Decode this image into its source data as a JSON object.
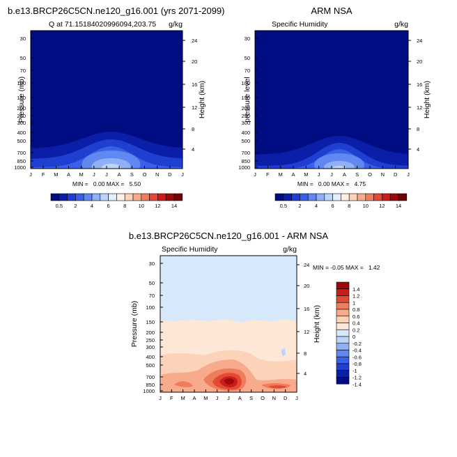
{
  "colors": {
    "seq_palette": [
      "#000c82",
      "#0b1ea8",
      "#1f3fd1",
      "#3a60e8",
      "#6088f0",
      "#8fb0f5",
      "#bcd3fa",
      "#e3eefd",
      "#fdf0e4",
      "#fcd3b8",
      "#f8ab8c",
      "#f07c5e",
      "#e44a33",
      "#c81e1a",
      "#9c0a0d",
      "#700306"
    ],
    "diff_palette": [
      "#000c82",
      "#0b1ea8",
      "#1f3fd1",
      "#3a60e8",
      "#6088f0",
      "#8fb0f5",
      "#bcd3fa",
      "#d7e8fb",
      "#fde8d8",
      "#fcd3b8",
      "#f8ab8c",
      "#f07c5e",
      "#e44a33",
      "#c81e1a",
      "#9c0a0d"
    ]
  },
  "chart_data": [
    {
      "type": "heatmap",
      "title": "b.e13.BRCP26C5CN.ne120_g16.001 (yrs 2071-2099)",
      "left_string": "Q at 71.15184020996094,203.75",
      "right_string": "g/kg",
      "ylabel": "Pressure (mb)",
      "y2label": "Height (km)",
      "x_ticks": [
        "J",
        "F",
        "M",
        "A",
        "M",
        "J",
        "J",
        "A",
        "S",
        "O",
        "N",
        "D",
        "J"
      ],
      "y_ticks": [
        "30",
        "50",
        "70",
        "100",
        "150",
        "200",
        "250",
        "300",
        "400",
        "500",
        "700",
        "850",
        "1000"
      ],
      "y2_ticks": [
        "24",
        "20",
        "16",
        "12",
        "8",
        "4"
      ],
      "min_max": "MIN =   0.00 MAX =   5.50",
      "colorbar_labels": [
        "0.5",
        "2",
        "4",
        "6",
        "8",
        "10",
        "12",
        "14"
      ],
      "approx_max": 5.5
    },
    {
      "type": "heatmap",
      "title": "ARM NSA",
      "left_string": "Specific Humidity",
      "right_string": "g/kg",
      "ylabel": "pressure level",
      "y2label": "Height (km)",
      "x_ticks": [
        "J",
        "F",
        "M",
        "A",
        "M",
        "J",
        "J",
        "A",
        "S",
        "O",
        "N",
        "D",
        "J"
      ],
      "y_ticks": [
        "30",
        "50",
        "70",
        "100",
        "150",
        "200",
        "250",
        "300",
        "400",
        "500",
        "700",
        "850",
        "1000"
      ],
      "y2_ticks": [
        "24",
        "20",
        "16",
        "12",
        "8",
        "4"
      ],
      "min_max": "MIN =   0.00 MAX =   4.75",
      "colorbar_labels": [
        "0.5",
        "2",
        "4",
        "6",
        "8",
        "10",
        "12",
        "14"
      ],
      "approx_max": 4.75
    },
    {
      "type": "heatmap",
      "title": "b.e13.BRCP26C5CN.ne120_g16.001 - ARM NSA",
      "left_string": "Specific Humidity",
      "right_string": "g/kg",
      "ylabel": "Pressure (mb)",
      "y2label": "Height (km)",
      "x_ticks": [
        "J",
        "F",
        "M",
        "A",
        "M",
        "J",
        "J",
        "A",
        "S",
        "O",
        "N",
        "D",
        "J"
      ],
      "y_ticks": [
        "30",
        "50",
        "70",
        "100",
        "150",
        "200",
        "250",
        "300",
        "400",
        "500",
        "700",
        "850",
        "1000"
      ],
      "y2_ticks": [
        "24",
        "20",
        "16",
        "12",
        "8",
        "4"
      ],
      "min_max": "MIN = -0.05 MAX =   1.42",
      "colorbar_labels": [
        "1.4",
        "1.2",
        "1",
        "0.8",
        "0.6",
        "0.4",
        "0.2",
        "0",
        "-0.2",
        "-0.4",
        "-0.6",
        "-0.8",
        "-1",
        "-1.2",
        "-1.4"
      ],
      "approx_min": -0.05,
      "approx_max": 1.42
    }
  ]
}
